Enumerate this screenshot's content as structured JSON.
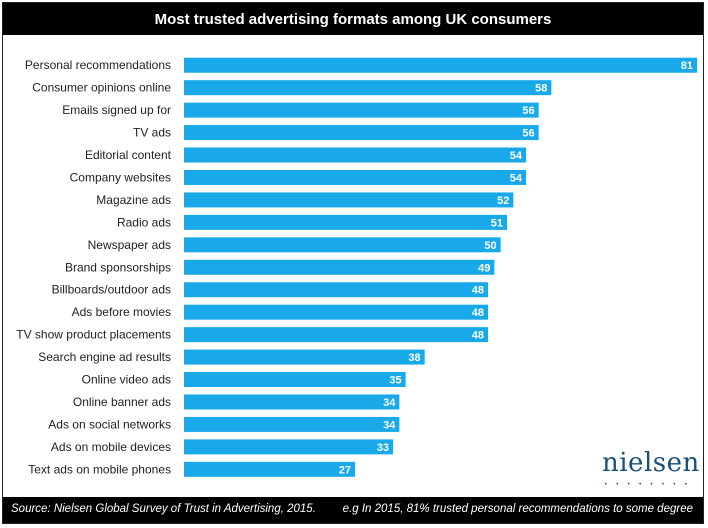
{
  "title": "Most trusted advertising formats among UK consumers",
  "footer": {
    "source": "Source: Nielsen Global Survey of Trust in Advertising, 2015.",
    "note": "e.g In 2015, 81% trusted personal recommendations to some degree"
  },
  "logo": {
    "text": "nielsen",
    "dots": "• • • • • • • •"
  },
  "colors": {
    "bar": "#1aa9e8",
    "header": "#000000"
  },
  "chart_data": {
    "type": "bar",
    "orientation": "horizontal",
    "title": "Most trusted advertising formats among UK consumers",
    "categories": [
      "Personal recommendations",
      "Consumer opinions online",
      "Emails signed up for",
      "TV ads",
      "Editorial content",
      "Company websites",
      "Magazine ads",
      "Radio ads",
      "Newspaper ads",
      "Brand sponsorships",
      "Billboards/outdoor ads",
      "Ads before movies",
      "TV show product placements",
      "Search engine ad results",
      "Online video ads",
      "Online banner ads",
      "Ads on social networks",
      "Ads on mobile devices",
      "Text ads on mobile phones"
    ],
    "values": [
      81,
      58,
      56,
      56,
      54,
      54,
      52,
      51,
      50,
      49,
      48,
      48,
      48,
      38,
      35,
      34,
      34,
      33,
      27
    ],
    "xlim": [
      0,
      81
    ],
    "grid": false,
    "data_labels": true
  }
}
